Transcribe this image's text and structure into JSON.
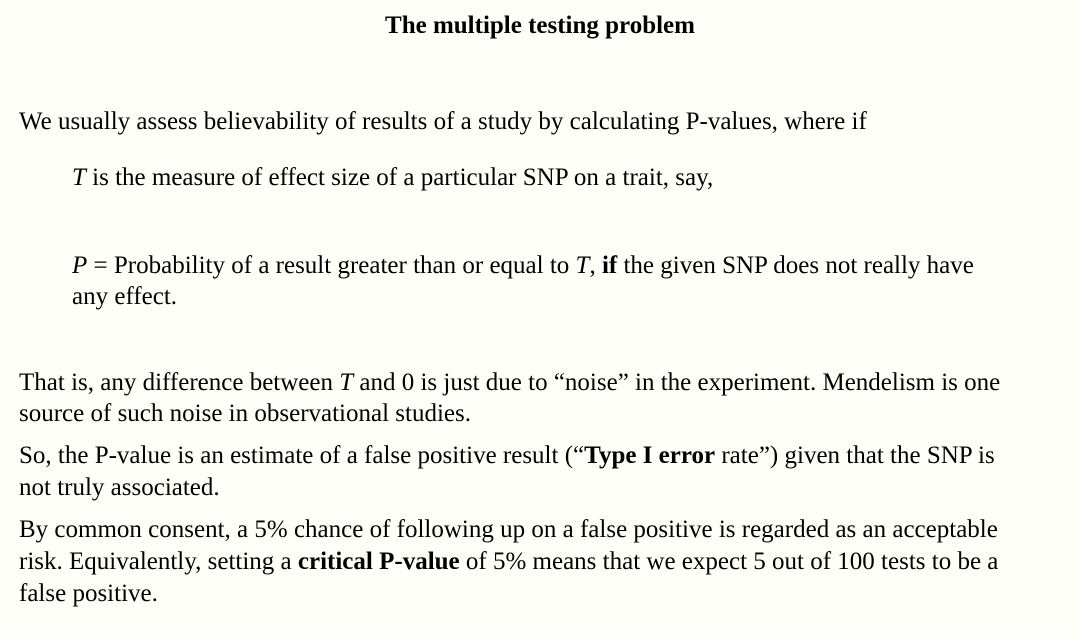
{
  "slide": {
    "title": "The multiple testing problem",
    "intro": "We usually assess believability of results of a study by calculating P-values, where if",
    "t_def": {
      "var": "T",
      "rest": " is the measure of effect size of a particular SNP on a trait, say,"
    },
    "p_def": {
      "var_p": "P",
      "part1": " = Probability of a result greater than or equal to ",
      "var_t": "T",
      "part2": ", ",
      "bold_if": "if",
      "part3": " the given SNP does not really have",
      "line2": "any effect."
    },
    "that_is": {
      "part1": "That is, any difference between ",
      "var_t": "T",
      "part2": " and 0 is just due to “noise” in the experiment.  Mendelism is one",
      "line2": "source of such noise in observational studies."
    },
    "so_pvalue": {
      "part1": "So, the P-value is an estimate of a false positive result (“",
      "bold": "Type I error",
      "part2": " rate”) given that the SNP is",
      "line2": "not truly associated."
    },
    "consent": {
      "line1": "By common consent, a 5% chance of following up on a false positive is regarded as an acceptable",
      "part1": "risk.  Equivalently, setting a ",
      "bold": "critical P-value",
      "part2": " of 5% means that we expect 5 out of 100 tests to be a",
      "line3": "false positive."
    }
  }
}
